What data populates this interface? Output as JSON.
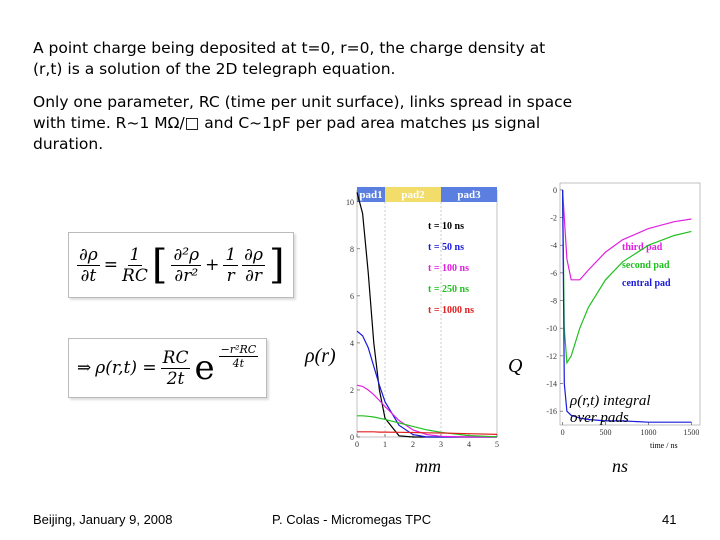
{
  "slide": {
    "paragraphs": [
      "A point charge being deposited at t=0, r=0, the charge density at (r,t) is a solution of the 2D telegraph equation.",
      "Only one parameter, RC (time per unit surface), links spread in space with time. R~1 MΩ/□ and C~1pF per pad area matches µs signal duration."
    ],
    "equation1": {
      "lhs_num": "∂ρ",
      "lhs_den": "∂t",
      "eq": "=",
      "c_num": "1",
      "c_den": "RC",
      "t1_num": "∂²ρ",
      "t1_den": "∂r²",
      "plus": "+",
      "t2_num": "1",
      "t2_den": "r",
      "t3_num": "∂ρ",
      "t3_den": "∂r"
    },
    "equation2": {
      "arrow": "⇒",
      "lhs": "ρ(r,t) =",
      "f_num": "RC",
      "f_den": "2t",
      "e": "e",
      "x_num": "−r²RC",
      "x_den": "4t"
    },
    "footer": {
      "left": "Beijing, January 9, 2008",
      "center": "P. Colas - Micromegas TPC",
      "page": "41"
    }
  },
  "chart_data": [
    {
      "type": "line",
      "annotations": {
        "ylabel": "ρ(r)",
        "xlabel": "mm"
      },
      "pads": [
        {
          "label": "pad1",
          "from": 0,
          "to": 1,
          "color": "#5b7fe0"
        },
        {
          "label": "pad2",
          "from": 1,
          "to": 3,
          "color": "#f2dc6a"
        },
        {
          "label": "pad3",
          "from": 3,
          "to": 5,
          "color": "#5b7fe0"
        }
      ],
      "x": [
        0,
        0.2,
        0.4,
        0.6,
        0.8,
        1,
        1.5,
        2,
        2.5,
        3,
        4,
        5
      ],
      "xlim": [
        0,
        5
      ],
      "ylim": [
        0,
        10.5
      ],
      "xticks": [
        0,
        1,
        2,
        3,
        4,
        5
      ],
      "yticks": [
        0,
        2,
        4,
        6,
        8,
        10
      ],
      "series": [
        {
          "name": "t = 10 ns",
          "color": "#000000",
          "values": [
            10.4,
            9.5,
            7,
            4,
            2,
            0.8,
            0.05,
            0,
            0,
            0,
            0,
            0
          ]
        },
        {
          "name": "t = 50 ns",
          "color": "#1a1adc",
          "values": [
            4.5,
            4.3,
            3.8,
            3,
            2.2,
            1.5,
            0.5,
            0.1,
            0,
            0,
            0,
            0
          ]
        },
        {
          "name": "t = 100 ns",
          "color": "#e020e0",
          "values": [
            2.2,
            2.15,
            2,
            1.8,
            1.55,
            1.3,
            0.7,
            0.3,
            0.1,
            0.03,
            0,
            0
          ]
        },
        {
          "name": "t = 250 ns",
          "color": "#20c020",
          "values": [
            0.9,
            0.9,
            0.88,
            0.85,
            0.8,
            0.75,
            0.6,
            0.45,
            0.3,
            0.2,
            0.06,
            0.01
          ]
        },
        {
          "name": "t = 1000 ns",
          "color": "#e02020",
          "values": [
            0.22,
            0.22,
            0.22,
            0.22,
            0.21,
            0.21,
            0.2,
            0.19,
            0.18,
            0.17,
            0.14,
            0.11
          ]
        }
      ]
    },
    {
      "type": "line",
      "annotations": {
        "ylabel": "Q",
        "xlabel": "ns",
        "axis_title": "time / ns",
        "note": "ρ(r,t) integral over pads"
      },
      "x": [
        0,
        20,
        50,
        100,
        200,
        300,
        500,
        700,
        1000,
        1300,
        1500
      ],
      "xlim": [
        -30,
        1600
      ],
      "ylim": [
        -17,
        0.5
      ],
      "xticks": [
        0,
        500,
        1000,
        1500
      ],
      "yticks": [
        0,
        -2,
        -4,
        -6,
        -8,
        -10,
        -12,
        -14,
        -16
      ],
      "series": [
        {
          "name": "third pad",
          "color": "#e020e0",
          "values": [
            0,
            -2,
            -5,
            -6.5,
            -6.5,
            -5.8,
            -4.5,
            -3.6,
            -2.8,
            -2.3,
            -2.1
          ]
        },
        {
          "name": "second pad",
          "color": "#20c020",
          "values": [
            0,
            -10,
            -12.5,
            -12,
            -10,
            -8.5,
            -6.5,
            -5.2,
            -4,
            -3.3,
            -3
          ]
        },
        {
          "name": "central pad",
          "color": "#1a1adc",
          "values": [
            0,
            -14,
            -16,
            -16.3,
            -16.5,
            -16.6,
            -16.7,
            -16.7,
            -16.8,
            -16.8,
            -16.8
          ]
        }
      ]
    }
  ]
}
